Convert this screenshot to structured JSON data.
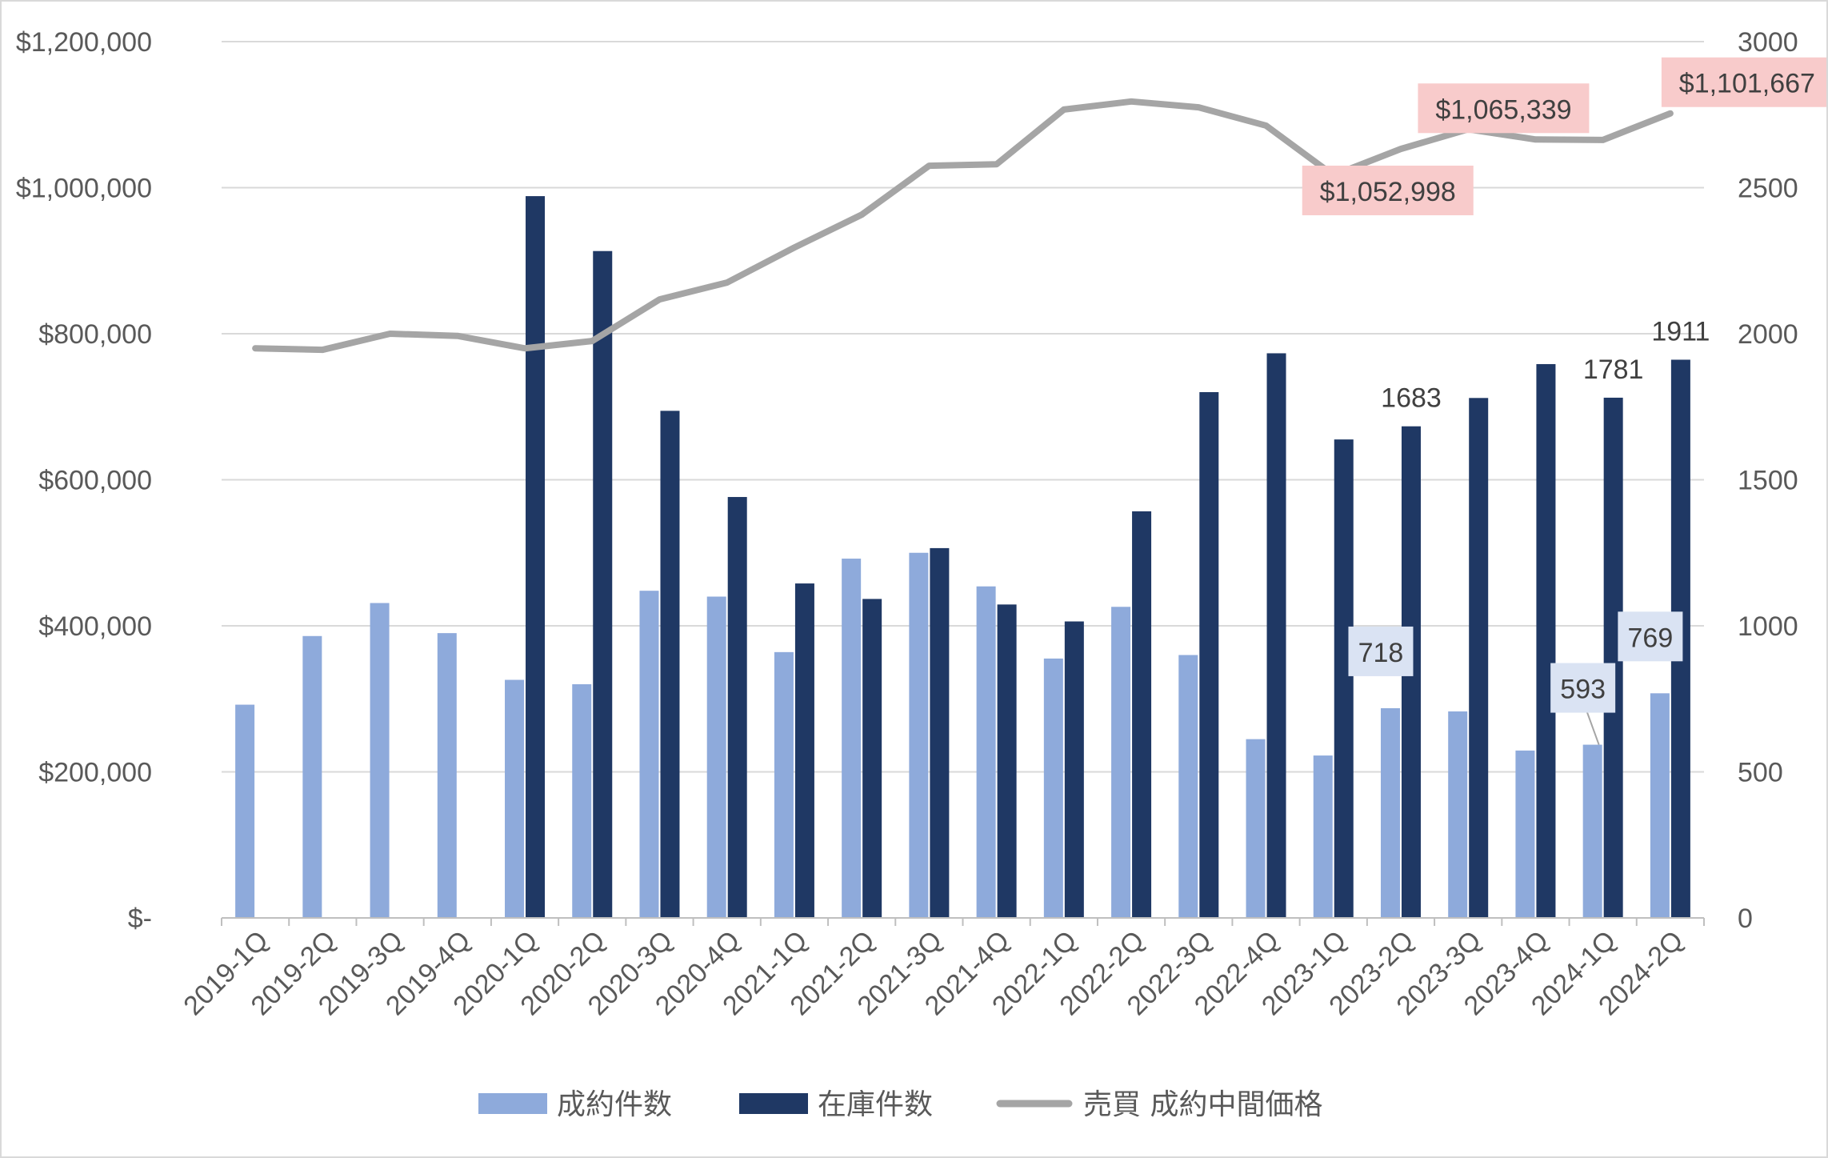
{
  "chart_data": {
    "type": "bar",
    "categories": [
      "2019-1Q",
      "2019-2Q",
      "2019-3Q",
      "2019-4Q",
      "2020-1Q",
      "2020-2Q",
      "2020-3Q",
      "2020-4Q",
      "2021-1Q",
      "2021-2Q",
      "2021-3Q",
      "2021-4Q",
      "2022-1Q",
      "2022-2Q",
      "2022-3Q",
      "2022-4Q",
      "2023-1Q",
      "2023-2Q",
      "2023-3Q",
      "2023-4Q",
      "2024-1Q",
      "2024-2Q"
    ],
    "series": [
      {
        "name": "成約件数",
        "kind": "bar",
        "axis": "right",
        "color": "#8eaadb",
        "values": [
          730,
          965,
          1078,
          975,
          815,
          800,
          1120,
          1100,
          910,
          1230,
          1250,
          1135,
          888,
          1065,
          900,
          612,
          556,
          718,
          707,
          573,
          593,
          769
        ]
      },
      {
        "name": "在庫件数",
        "kind": "bar",
        "axis": "right",
        "color": "#1f3864",
        "values": [
          null,
          null,
          null,
          null,
          2471,
          2283,
          1736,
          1441,
          1145,
          1092,
          1266,
          1073,
          1015,
          1392,
          1800,
          1933,
          1638,
          1683,
          1780,
          1896,
          1781,
          1911
        ]
      },
      {
        "name": "売買 成約中間価格",
        "kind": "line",
        "axis": "left",
        "color": "#a5a5a5",
        "values": [
          780000,
          778000,
          800000,
          797000,
          780000,
          790000,
          847000,
          870000,
          918000,
          963000,
          1030000,
          1032000,
          1107000,
          1118000,
          1110000,
          1085000,
          1017000,
          1052998,
          1080000,
          1066000,
          1065339,
          1101667
        ]
      }
    ],
    "y_left": {
      "min": 0,
      "max": 1200000,
      "ticks": [
        "$-",
        "$200,000",
        "$400,000",
        "$600,000",
        "$800,000",
        "$1,000,000",
        "$1,200,000"
      ]
    },
    "y_right": {
      "min": 0,
      "max": 3000,
      "ticks": [
        "0",
        "500",
        "1000",
        "1500",
        "2000",
        "2500",
        "3000"
      ]
    },
    "grid": true,
    "legend_position": "bottom",
    "annotations": [
      {
        "series": 1,
        "index": 17,
        "text": "1683",
        "style": "plain"
      },
      {
        "series": 1,
        "index": 20,
        "text": "1781",
        "style": "plain"
      },
      {
        "series": 1,
        "index": 21,
        "text": "1911",
        "style": "plain"
      },
      {
        "series": 0,
        "index": 17,
        "text": "718",
        "style": "box"
      },
      {
        "series": 0,
        "index": 20,
        "text": "593",
        "style": "box"
      },
      {
        "series": 0,
        "index": 21,
        "text": "769",
        "style": "box"
      },
      {
        "series": 2,
        "index": 16,
        "text": "$1,052,998",
        "style": "pink"
      },
      {
        "series": 2,
        "index": 19,
        "text": "$1,065,339",
        "style": "pink"
      },
      {
        "series": 2,
        "index": 21,
        "text": "$1,101,667",
        "style": "pink"
      }
    ]
  }
}
